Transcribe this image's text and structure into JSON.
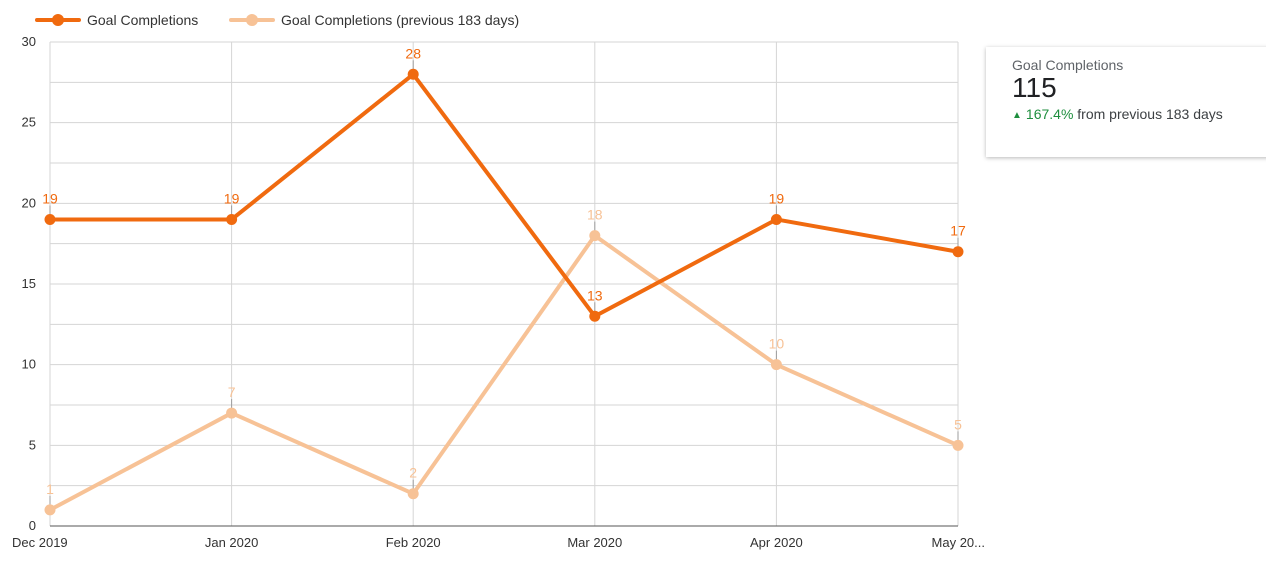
{
  "chart_data": {
    "type": "line",
    "title": "",
    "xlabel": "",
    "ylabel": "",
    "categories": [
      "Dec 2019",
      "Jan 2020",
      "Feb 2020",
      "Mar 2020",
      "Apr 2020",
      "May 20..."
    ],
    "ylim": [
      0,
      30
    ],
    "yticks": [
      "0",
      "5",
      "10",
      "15",
      "20",
      "25",
      "30"
    ],
    "grid": true,
    "legend_position": "top-left",
    "series": [
      {
        "name": "Goal Completions",
        "color": "#f06a0f",
        "values": [
          19,
          19,
          28,
          13,
          19,
          17
        ],
        "labels": [
          "19",
          "19",
          "28",
          "13",
          "19",
          "17"
        ]
      },
      {
        "name": "Goal Completions (previous 183 days)",
        "color": "#f7c296",
        "values": [
          1,
          7,
          2,
          18,
          10,
          5
        ],
        "labels": [
          "1",
          "7",
          "2",
          "18",
          "10",
          "5"
        ]
      }
    ]
  },
  "scorecard": {
    "label": "Goal Completions",
    "value": "115",
    "delta_arrow": "▲",
    "delta_percent": "167.4%",
    "delta_suffix": " from previous 183 days",
    "delta_color": "#1e8e3e"
  }
}
